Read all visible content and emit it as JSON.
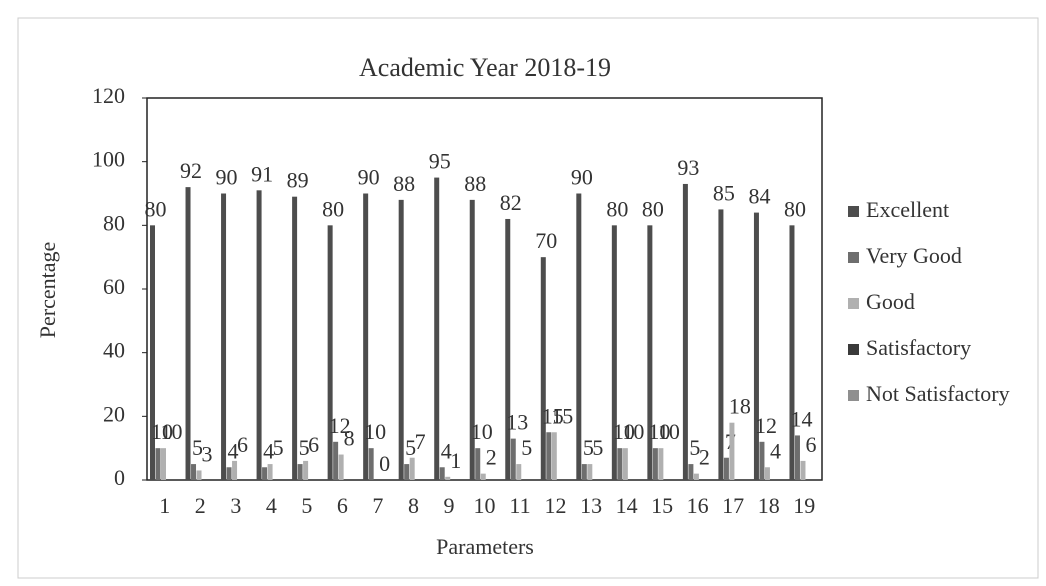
{
  "chart_data": {
    "type": "bar",
    "title": "Academic Year 2018-19",
    "x_label": "Parameters",
    "y_label": "Percentage",
    "categories": [
      "1",
      "2",
      "3",
      "4",
      "5",
      "6",
      "7",
      "8",
      "9",
      "10",
      "11",
      "12",
      "13",
      "14",
      "15",
      "16",
      "17",
      "18",
      "19"
    ],
    "series": [
      {
        "name": "Excellent",
        "color": "#4d4d4d",
        "values": [
          80,
          92,
          90,
          91,
          89,
          80,
          90,
          88,
          95,
          88,
          82,
          70,
          90,
          80,
          80,
          93,
          85,
          84,
          80
        ]
      },
      {
        "name": "Very Good",
        "color": "#6e6e6e",
        "values": [
          10,
          5,
          4,
          4,
          5,
          12,
          10,
          5,
          4,
          10,
          13,
          15,
          5,
          10,
          10,
          5,
          7,
          12,
          14
        ]
      },
      {
        "name": "Good",
        "color": "#b0b0b0",
        "values": [
          10,
          3,
          6,
          5,
          6,
          8,
          0,
          7,
          1,
          2,
          5,
          15,
          5,
          10,
          10,
          2,
          18,
          4,
          6
        ]
      },
      {
        "name": "Satisfactory",
        "color": "#3a3a3a",
        "values": [
          0,
          0,
          0,
          0,
          0,
          0,
          0,
          0,
          0,
          0,
          0,
          0,
          0,
          0,
          0,
          0,
          0,
          0,
          0
        ]
      },
      {
        "name": "Not Satisfactory",
        "color": "#8f8f8f",
        "values": [
          0,
          0,
          0,
          0,
          0,
          0,
          0,
          0,
          0,
          0,
          0,
          0,
          0,
          0,
          0,
          0,
          0,
          0,
          0
        ]
      }
    ],
    "labeled_series": [
      0,
      1,
      2
    ],
    "ylim": [
      0,
      120
    ],
    "yticks": [
      0,
      20,
      40,
      60,
      80,
      100,
      120
    ],
    "grid": false,
    "legend": "right"
  }
}
